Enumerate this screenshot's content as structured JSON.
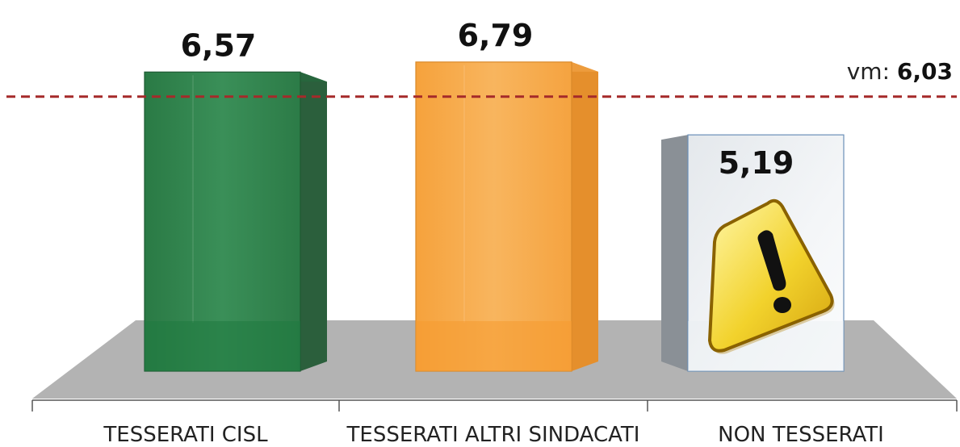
{
  "chart_data": {
    "type": "bar",
    "categories": [
      "TESSERATI CISL",
      "TESSERATI ALTRI SINDACATI",
      "NON TESSERATI"
    ],
    "values": [
      6.57,
      6.79,
      5.19
    ],
    "value_labels": [
      "6,57",
      "6,79",
      "5,19"
    ],
    "colors": [
      "#2f7f4a",
      "#f6a945",
      "#eef1f4"
    ],
    "ylim": [
      0,
      7
    ],
    "grid": false,
    "reference_line": {
      "prefix": "vm: ",
      "value": 6.03,
      "value_label": "6,03",
      "color": "#a52a2a",
      "style": "dashed"
    },
    "warning_icon": {
      "category": "NON TESSERATI",
      "icon": "warning-icon"
    }
  }
}
